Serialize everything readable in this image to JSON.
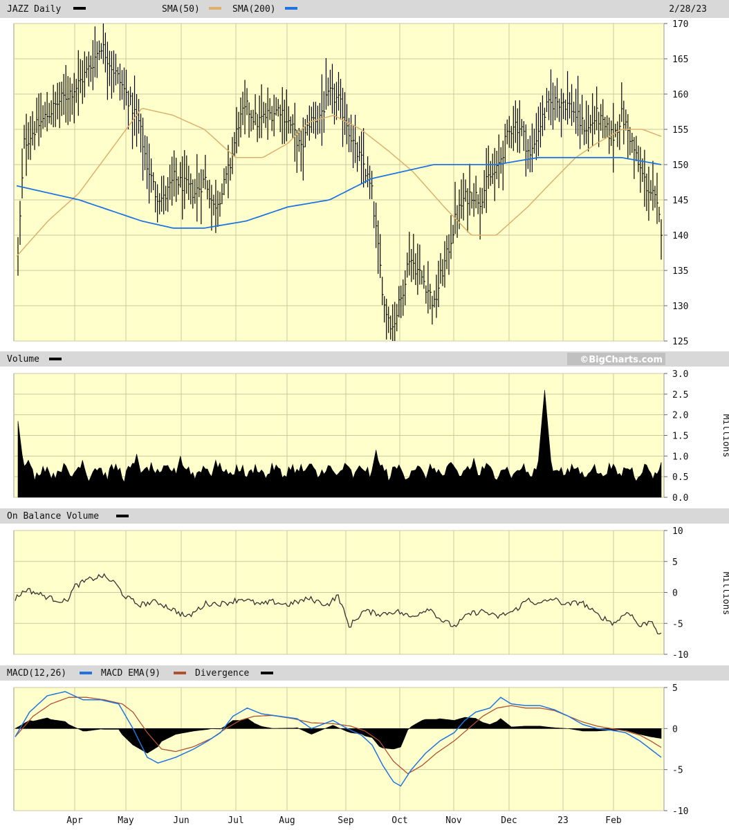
{
  "header": {
    "symbol_label": "JAZZ Daily",
    "sma50_label": "SMA(50)",
    "sma200_label": "SMA(200)",
    "date": "2/28/23"
  },
  "volume_header": {
    "label": "Volume",
    "brand": "©BigCharts.com"
  },
  "obv_header": {
    "label": "On Balance Volume"
  },
  "macd_header": {
    "macd_label": "MACD(12,26)",
    "ema_label": "MACD EMA(9)",
    "div_label": "Divergence"
  },
  "units": {
    "volume": "Millions",
    "obv": "Millions"
  },
  "colors": {
    "background": "#ffffcc",
    "grid": "#c8c8a0",
    "panel_header": "#d8d8d8",
    "price_bar": "#000000",
    "sma50": "#deb06a",
    "sma200": "#1f74e0",
    "macd": "#1f74e0",
    "macd_ema": "#b05030",
    "divergence": "#000000",
    "volume": "#000000",
    "obv": "#333333"
  },
  "chart_data": [
    {
      "type": "line",
      "name": "price",
      "xticks": [
        "Apr",
        "May",
        "Jun",
        "Jul",
        "Aug",
        "Sep",
        "Oct",
        "Nov",
        "Dec",
        "23",
        "Feb"
      ],
      "ylim": [
        125,
        170
      ],
      "yticks": [
        125,
        130,
        135,
        140,
        145,
        150,
        155,
        160,
        165,
        170
      ],
      "close_keypoints": [
        [
          0,
          137
        ],
        [
          3,
          153
        ],
        [
          8,
          155
        ],
        [
          14,
          157
        ],
        [
          20,
          159
        ],
        [
          28,
          161
        ],
        [
          35,
          164
        ],
        [
          40,
          167
        ],
        [
          45,
          164
        ],
        [
          52,
          160
        ],
        [
          58,
          156
        ],
        [
          62,
          150
        ],
        [
          66,
          146
        ],
        [
          70,
          145
        ],
        [
          75,
          148
        ],
        [
          80,
          147
        ],
        [
          85,
          146
        ],
        [
          90,
          148
        ],
        [
          94,
          144
        ],
        [
          98,
          146
        ],
        [
          102,
          150
        ],
        [
          106,
          156
        ],
        [
          110,
          158
        ],
        [
          115,
          156
        ],
        [
          120,
          157
        ],
        [
          126,
          158
        ],
        [
          132,
          155
        ],
        [
          136,
          152
        ],
        [
          140,
          156
        ],
        [
          145,
          157
        ],
        [
          150,
          160
        ],
        [
          154,
          159
        ],
        [
          158,
          156
        ],
        [
          162,
          152
        ],
        [
          166,
          150
        ],
        [
          170,
          146
        ],
        [
          173,
          138
        ],
        [
          176,
          130
        ],
        [
          180,
          127
        ],
        [
          184,
          131
        ],
        [
          188,
          137
        ],
        [
          192,
          135
        ],
        [
          196,
          133
        ],
        [
          200,
          130
        ],
        [
          203,
          134
        ],
        [
          206,
          137
        ],
        [
          210,
          142
        ],
        [
          214,
          145
        ],
        [
          218,
          146
        ],
        [
          222,
          145
        ],
        [
          226,
          148
        ],
        [
          230,
          149
        ],
        [
          234,
          153
        ],
        [
          238,
          156
        ],
        [
          242,
          155
        ],
        [
          246,
          151
        ],
        [
          250,
          155
        ],
        [
          254,
          158
        ],
        [
          258,
          159
        ],
        [
          262,
          159
        ],
        [
          266,
          158
        ],
        [
          270,
          156
        ],
        [
          274,
          155
        ],
        [
          278,
          157
        ],
        [
          282,
          155
        ],
        [
          286,
          154
        ],
        [
          290,
          157
        ],
        [
          294,
          154
        ],
        [
          298,
          150
        ],
        [
          302,
          147
        ],
        [
          306,
          145
        ],
        [
          309,
          141
        ]
      ],
      "sma50_keypoints": [
        [
          0,
          137
        ],
        [
          15,
          142
        ],
        [
          30,
          146
        ],
        [
          45,
          152
        ],
        [
          60,
          158
        ],
        [
          75,
          157
        ],
        [
          90,
          155
        ],
        [
          105,
          151
        ],
        [
          118,
          151
        ],
        [
          130,
          153
        ],
        [
          140,
          156
        ],
        [
          152,
          157
        ],
        [
          165,
          155
        ],
        [
          178,
          152
        ],
        [
          190,
          149
        ],
        [
          205,
          144
        ],
        [
          218,
          140
        ],
        [
          230,
          140
        ],
        [
          245,
          144
        ],
        [
          258,
          148
        ],
        [
          268,
          151
        ],
        [
          278,
          153
        ],
        [
          290,
          155
        ],
        [
          300,
          155
        ],
        [
          309,
          154
        ]
      ],
      "sma200_keypoints": [
        [
          0,
          147
        ],
        [
          30,
          145
        ],
        [
          60,
          142
        ],
        [
          75,
          141
        ],
        [
          90,
          141
        ],
        [
          110,
          142
        ],
        [
          130,
          144
        ],
        [
          150,
          145
        ],
        [
          170,
          148
        ],
        [
          185,
          149
        ],
        [
          200,
          150
        ],
        [
          230,
          150
        ],
        [
          250,
          151
        ],
        [
          270,
          151
        ],
        [
          290,
          151
        ],
        [
          309,
          150
        ]
      ]
    },
    {
      "type": "area",
      "name": "volume",
      "unit": "Millions",
      "ylim": [
        0,
        3
      ],
      "yticks": [
        0.0,
        0.5,
        1.0,
        1.5,
        2.0,
        2.5,
        3.0
      ],
      "spikes": [
        [
          0,
          1.85
        ],
        [
          5,
          0.9
        ],
        [
          31,
          0.9
        ],
        [
          57,
          1.05
        ],
        [
          78,
          1.0
        ],
        [
          95,
          0.9
        ],
        [
          136,
          0.8
        ],
        [
          172,
          1.15
        ],
        [
          219,
          0.95
        ],
        [
          232,
          0.65
        ],
        [
          250,
          0.85
        ],
        [
          253,
          2.6
        ],
        [
          264,
          0.7
        ],
        [
          287,
          0.7
        ],
        [
          309,
          0.85
        ]
      ]
    },
    {
      "type": "line",
      "name": "on_balance_volume",
      "unit": "Millions",
      "ylim": [
        -10,
        10
      ],
      "yticks": [
        -10,
        -5,
        0,
        5,
        10
      ],
      "keypoints": [
        [
          0,
          -1
        ],
        [
          6,
          0.5
        ],
        [
          20,
          -1
        ],
        [
          28,
          -1.5
        ],
        [
          33,
          1
        ],
        [
          40,
          2
        ],
        [
          48,
          2.7
        ],
        [
          55,
          1.5
        ],
        [
          60,
          -0.5
        ],
        [
          68,
          -2
        ],
        [
          78,
          -1.5
        ],
        [
          85,
          -2.5
        ],
        [
          95,
          -4
        ],
        [
          105,
          -1.8
        ],
        [
          115,
          -1.8
        ],
        [
          125,
          -1
        ],
        [
          135,
          -2
        ],
        [
          142,
          -1.5
        ],
        [
          150,
          -2
        ],
        [
          162,
          -1
        ],
        [
          172,
          -2
        ],
        [
          178,
          -0.5
        ],
        [
          184,
          -5.5
        ],
        [
          192,
          -3
        ],
        [
          202,
          -3.5
        ],
        [
          210,
          -3
        ],
        [
          218,
          -4
        ],
        [
          228,
          -2.5
        ],
        [
          235,
          -4.5
        ],
        [
          242,
          -5.5
        ],
        [
          250,
          -3.5
        ],
        [
          258,
          -3
        ],
        [
          265,
          -4
        ],
        [
          270,
          -3.5
        ],
        [
          275,
          -3
        ],
        [
          283,
          -1
        ],
        [
          288,
          -2
        ],
        [
          296,
          -1
        ],
        [
          304,
          -2
        ],
        [
          312,
          -1.5
        ],
        [
          320,
          -3.5
        ],
        [
          330,
          -5
        ],
        [
          338,
          -3
        ],
        [
          344,
          -5.5
        ],
        [
          351,
          -4.5
        ],
        [
          355,
          -7
        ]
      ]
    },
    {
      "type": "line",
      "name": "macd",
      "ylim": [
        -10,
        5
      ],
      "yticks": [
        -10,
        -5,
        0,
        5
      ],
      "macd_keypoints": [
        [
          0,
          -1
        ],
        [
          8,
          2
        ],
        [
          18,
          4
        ],
        [
          28,
          4.5
        ],
        [
          38,
          3.5
        ],
        [
          48,
          3.5
        ],
        [
          58,
          3
        ],
        [
          66,
          0
        ],
        [
          74,
          -3.5
        ],
        [
          80,
          -4.2
        ],
        [
          90,
          -3.5
        ],
        [
          100,
          -2.5
        ],
        [
          108,
          -1.5
        ],
        [
          115,
          -0.5
        ],
        [
          122,
          1.5
        ],
        [
          130,
          2.5
        ],
        [
          138,
          1.8
        ],
        [
          148,
          1.5
        ],
        [
          158,
          1.2
        ],
        [
          166,
          0
        ],
        [
          172,
          0.5
        ],
        [
          178,
          1
        ],
        [
          186,
          0
        ],
        [
          194,
          -0.8
        ],
        [
          200,
          -2
        ],
        [
          206,
          -4.5
        ],
        [
          212,
          -6.5
        ],
        [
          216,
          -7
        ],
        [
          222,
          -5
        ],
        [
          230,
          -3
        ],
        [
          238,
          -1.5
        ],
        [
          246,
          -0.5
        ],
        [
          252,
          1
        ],
        [
          258,
          2
        ],
        [
          266,
          2.5
        ],
        [
          272,
          3.8
        ],
        [
          278,
          3
        ],
        [
          286,
          2.8
        ],
        [
          294,
          2.8
        ],
        [
          302,
          2.3
        ],
        [
          310,
          1.5
        ],
        [
          318,
          0.5
        ],
        [
          326,
          0
        ],
        [
          334,
          -0.2
        ],
        [
          342,
          -0.5
        ],
        [
          350,
          -1.5
        ],
        [
          356,
          -2.5
        ],
        [
          362,
          -3.5
        ]
      ],
      "ema_keypoints": [
        [
          0,
          -1
        ],
        [
          10,
          1.5
        ],
        [
          20,
          3
        ],
        [
          30,
          3.8
        ],
        [
          40,
          3.8
        ],
        [
          50,
          3.5
        ],
        [
          60,
          3
        ],
        [
          66,
          2
        ],
        [
          74,
          -0.5
        ],
        [
          82,
          -2.5
        ],
        [
          90,
          -2.8
        ],
        [
          100,
          -2.2
        ],
        [
          110,
          -1.2
        ],
        [
          118,
          0
        ],
        [
          126,
          1
        ],
        [
          134,
          1.5
        ],
        [
          144,
          1.6
        ],
        [
          156,
          1.2
        ],
        [
          166,
          0.7
        ],
        [
          178,
          0.6
        ],
        [
          188,
          0.3
        ],
        [
          196,
          -0.3
        ],
        [
          204,
          -1.5
        ],
        [
          212,
          -4
        ],
        [
          220,
          -5.5
        ],
        [
          228,
          -4.5
        ],
        [
          236,
          -3
        ],
        [
          246,
          -1.5
        ],
        [
          254,
          0
        ],
        [
          262,
          1.5
        ],
        [
          270,
          2.5
        ],
        [
          278,
          2.8
        ],
        [
          286,
          2.5
        ],
        [
          294,
          2.5
        ],
        [
          302,
          2.2
        ],
        [
          310,
          1.5
        ],
        [
          318,
          0.8
        ],
        [
          326,
          0.3
        ],
        [
          334,
          0
        ],
        [
          342,
          -0.3
        ],
        [
          350,
          -0.8
        ],
        [
          356,
          -1.5
        ],
        [
          362,
          -2.3
        ]
      ]
    }
  ]
}
